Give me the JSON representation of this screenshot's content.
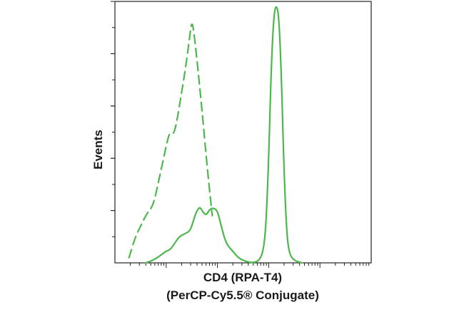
{
  "chart_data": {
    "type": "line",
    "xlabel_line1": "CD4 (RPA-T4)",
    "xlabel_line2": "(PerCP-Cy5.5® Conjugate)",
    "ylabel": "Events",
    "x_scale": "log",
    "xlim": [
      0,
      1
    ],
    "ylim": [
      0,
      1
    ],
    "colors": {
      "series": "#4cb84c",
      "axis": "#222222"
    },
    "series": [
      {
        "style": "dashed",
        "points": [
          [
            0.055,
            0.02
          ],
          [
            0.08,
            0.1
          ],
          [
            0.1,
            0.14
          ],
          [
            0.125,
            0.19
          ],
          [
            0.15,
            0.22
          ],
          [
            0.17,
            0.31
          ],
          [
            0.19,
            0.4
          ],
          [
            0.205,
            0.47
          ],
          [
            0.215,
            0.5
          ],
          [
            0.23,
            0.49
          ],
          [
            0.245,
            0.56
          ],
          [
            0.26,
            0.65
          ],
          [
            0.275,
            0.74
          ],
          [
            0.29,
            0.85
          ],
          [
            0.3,
            0.93
          ],
          [
            0.31,
            0.87
          ],
          [
            0.325,
            0.73
          ],
          [
            0.34,
            0.58
          ],
          [
            0.355,
            0.42
          ],
          [
            0.37,
            0.27
          ],
          [
            0.38,
            0.18
          ]
        ]
      },
      {
        "style": "solid",
        "points": [
          [
            0.12,
            0.0
          ],
          [
            0.15,
            0.01
          ],
          [
            0.18,
            0.03
          ],
          [
            0.2,
            0.045
          ],
          [
            0.215,
            0.05
          ],
          [
            0.23,
            0.07
          ],
          [
            0.25,
            0.1
          ],
          [
            0.27,
            0.11
          ],
          [
            0.29,
            0.12
          ],
          [
            0.3,
            0.14
          ],
          [
            0.315,
            0.19
          ],
          [
            0.33,
            0.215
          ],
          [
            0.34,
            0.2
          ],
          [
            0.355,
            0.18
          ],
          [
            0.37,
            0.205
          ],
          [
            0.385,
            0.21
          ],
          [
            0.4,
            0.2
          ],
          [
            0.415,
            0.14
          ],
          [
            0.43,
            0.085
          ],
          [
            0.445,
            0.06
          ],
          [
            0.46,
            0.045
          ],
          [
            0.48,
            0.02
          ],
          [
            0.51,
            0.005
          ],
          [
            0.54,
            0.0
          ],
          [
            0.565,
            0.01
          ],
          [
            0.58,
            0.05
          ],
          [
            0.59,
            0.15
          ],
          [
            0.6,
            0.4
          ],
          [
            0.61,
            0.75
          ],
          [
            0.62,
            0.95
          ],
          [
            0.63,
            0.99
          ],
          [
            0.64,
            0.94
          ],
          [
            0.65,
            0.7
          ],
          [
            0.66,
            0.35
          ],
          [
            0.67,
            0.12
          ],
          [
            0.68,
            0.035
          ],
          [
            0.7,
            0.008
          ],
          [
            0.73,
            0.0
          ]
        ]
      }
    ]
  }
}
